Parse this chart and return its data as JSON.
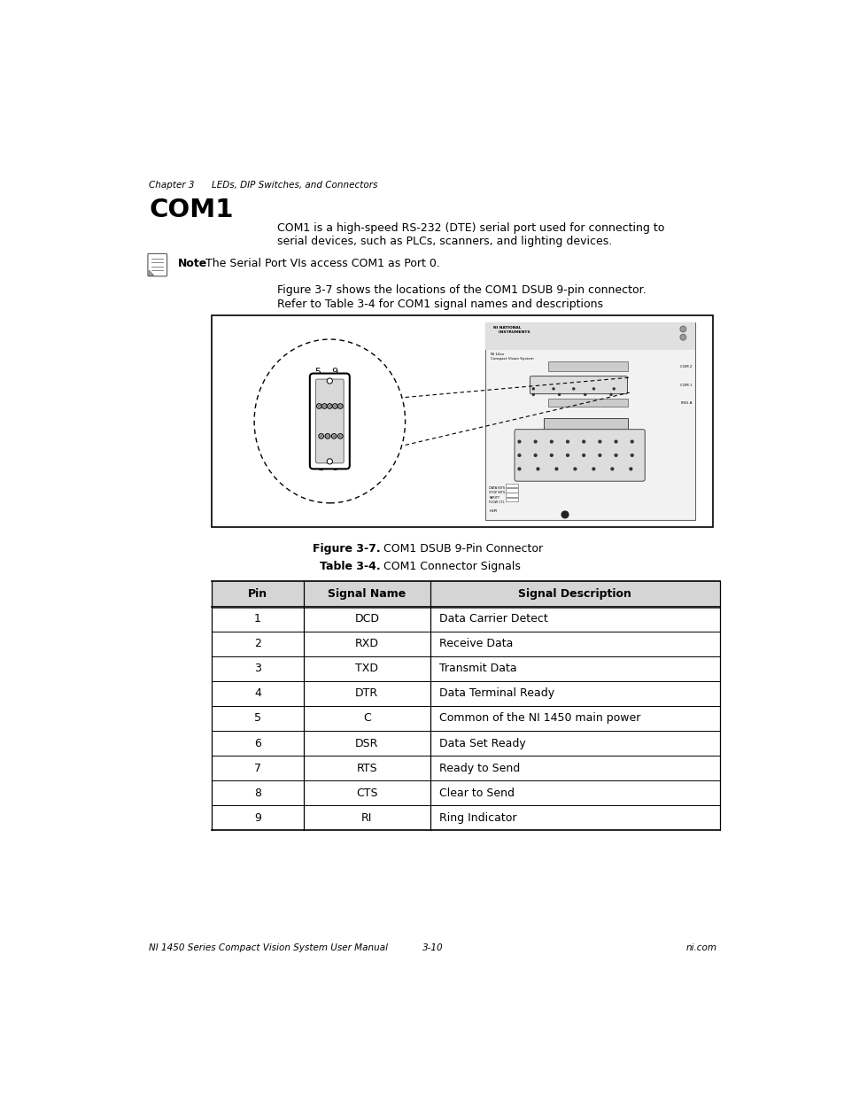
{
  "bg_color": "#ffffff",
  "page_width": 9.54,
  "page_height": 12.35,
  "chapter_header": "Chapter 3      LEDs, DIP Switches, and Connectors",
  "section_title": "COM1",
  "body_text_line1": "COM1 is a high-speed RS-232 (DTE) serial port used for connecting to",
  "body_text_line2": "serial devices, such as PLCs, scanners, and lighting devices.",
  "note_label": "Note",
  "note_text": "The Serial Port VIs access COM1 as Port 0.",
  "figure_caption_line1": "Figure 3-7 shows the locations of the COM1 DSUB 9-pin connector.",
  "figure_caption_line2": "Refer to Table 3-4 for COM1 signal names and descriptions",
  "figure_label_bold": "Figure 3-7.",
  "figure_label_plain": "  COM1 DSUB 9-Pin Connector",
  "table_title_bold": "Table 3-4.",
  "table_title_plain": "  COM1 Connector Signals",
  "table_headers": [
    "Pin",
    "Signal Name",
    "Signal Description"
  ],
  "table_rows": [
    [
      "1",
      "DCD",
      "Data Carrier Detect"
    ],
    [
      "2",
      "RXD",
      "Receive Data"
    ],
    [
      "3",
      "TXD",
      "Transmit Data"
    ],
    [
      "4",
      "DTR",
      "Data Terminal Ready"
    ],
    [
      "5",
      "C",
      "Common of the NI 1450 main power"
    ],
    [
      "6",
      "DSR",
      "Data Set Ready"
    ],
    [
      "7",
      "RTS",
      "Ready to Send"
    ],
    [
      "8",
      "CTS",
      "Clear to Send"
    ],
    [
      "9",
      "RI",
      "Ring Indicator"
    ]
  ],
  "footer_left": "NI 1450 Series Compact Vision System User Manual",
  "footer_center": "3-10",
  "footer_right": "ni.com"
}
